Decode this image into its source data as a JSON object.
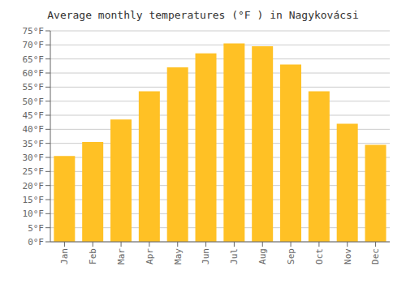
{
  "chart_data": {
    "type": "bar",
    "title": "Average monthly temperatures (°F ) in Nagykovácsi",
    "categories": [
      "Jan",
      "Feb",
      "Mar",
      "Apr",
      "May",
      "Jun",
      "Jul",
      "Aug",
      "Sep",
      "Oct",
      "Nov",
      "Dec"
    ],
    "values": [
      30.5,
      35.5,
      43.5,
      53.5,
      62.0,
      67.0,
      70.5,
      69.5,
      63.0,
      53.5,
      42.0,
      34.5
    ],
    "color": "#FFC125",
    "ylim": [
      0,
      75
    ],
    "yticks": [
      {
        "value": 0,
        "label": "0°F"
      },
      {
        "value": 5,
        "label": "5°F"
      },
      {
        "value": 10,
        "label": "10°F"
      },
      {
        "value": 15,
        "label": "15°F"
      },
      {
        "value": 20,
        "label": "20°F"
      },
      {
        "value": 25,
        "label": "25°F"
      },
      {
        "value": 30,
        "label": "30°F"
      },
      {
        "value": 35,
        "label": "35°F"
      },
      {
        "value": 40,
        "label": "40°F"
      },
      {
        "value": 45,
        "label": "45°F"
      },
      {
        "value": 50,
        "label": "50°F"
      },
      {
        "value": 55,
        "label": "55°F"
      },
      {
        "value": 60,
        "label": "60°F"
      },
      {
        "value": 65,
        "label": "65°F"
      },
      {
        "value": 70,
        "label": "70°F"
      },
      {
        "value": 75,
        "label": "75°F"
      }
    ],
    "grid": true
  }
}
